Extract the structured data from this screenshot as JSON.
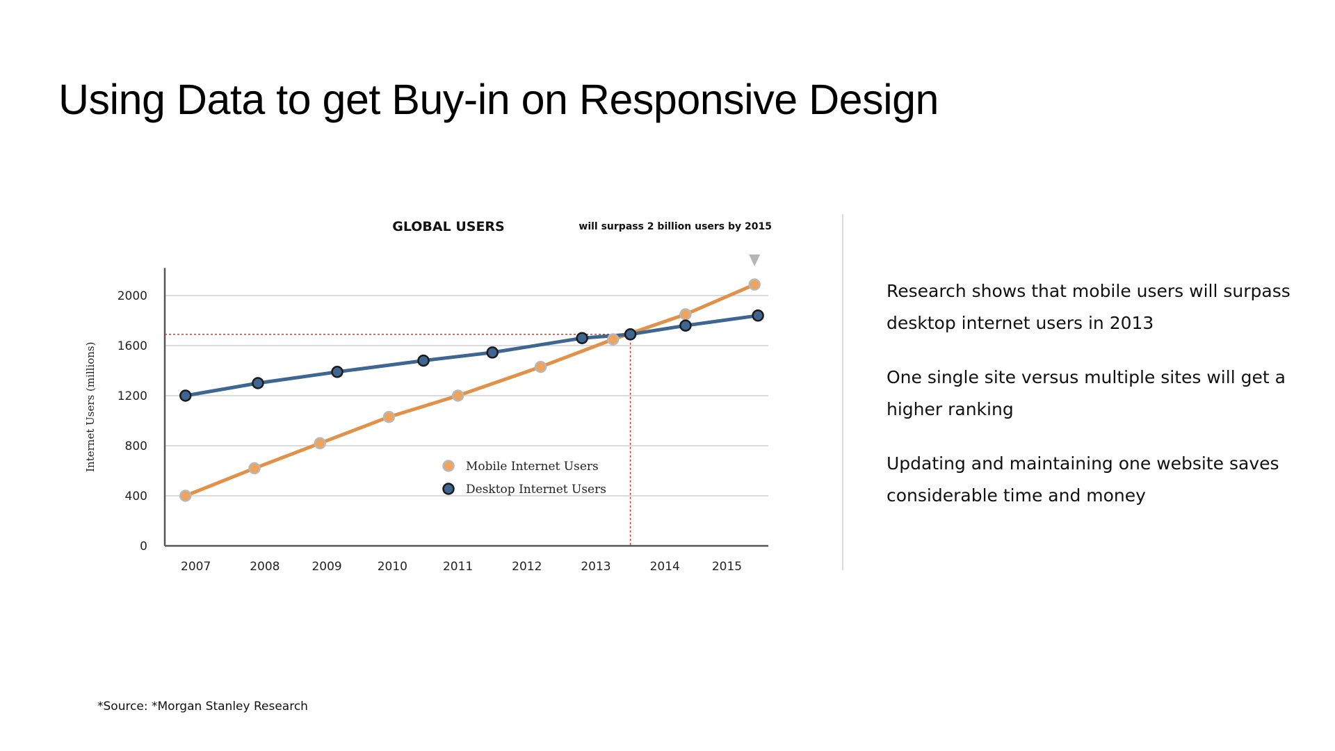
{
  "slide": {
    "title": "Using Data to get Buy-in on Responsive Design"
  },
  "bullets": [
    "Research shows that mobile users will surpass desktop internet users in 2013",
    "One single site versus multiple sites will get a higher ranking",
    "Updating and maintaining one website saves considerable time and money"
  ],
  "footer": {
    "source": "*Source: *Morgan Stanley Research"
  },
  "colors": {
    "mobile": "#e0924a",
    "desktop": "#3f6591",
    "marker_outline": "#1b1b1b",
    "mobile_marker_fill": "#f0a35b",
    "mobile_marker_ring": "#b8b8b8",
    "crossover_guide": "#d8312a",
    "grid": "#cfcfcf",
    "axis": "#555555",
    "arrow": "#b5b5b5"
  },
  "chart_data": {
    "type": "line",
    "title": "GLOBAL USERS",
    "subtitle": "will surpass 2 billion users by 2015",
    "xlabel": "",
    "ylabel": "Internet Users (millions)",
    "x_ticks": [
      "2007",
      "2008",
      "2009",
      "2010",
      "2011",
      "2012",
      "2013",
      "2014",
      "2015"
    ],
    "xlim": [
      2006.7,
      2015.45
    ],
    "y_ticks": [
      {
        "value": 0,
        "label": "0"
      },
      {
        "value": 400,
        "label": "400"
      },
      {
        "value": 800,
        "label": "800"
      },
      {
        "value": 1200,
        "label": "1200"
      },
      {
        "value": 1600,
        "label": "1600"
      },
      {
        "value": 2000,
        "label": "2000"
      }
    ],
    "y_scale": [
      {
        "value": 0,
        "pos": 0
      },
      {
        "value": 400,
        "pos": 1
      },
      {
        "value": 800,
        "pos": 2
      },
      {
        "value": 1200,
        "pos": 3
      },
      {
        "value": 1600,
        "pos": 4
      },
      {
        "value": 2000,
        "pos": 5
      },
      {
        "value": 2200,
        "pos": 5.55
      }
    ],
    "grid": true,
    "legend": "center",
    "series": [
      {
        "name": "Mobile Internet Users",
        "key": "mobile",
        "points": [
          {
            "x": 2007.0,
            "y": 400
          },
          {
            "x": 2008.0,
            "y": 620
          },
          {
            "x": 2008.95,
            "y": 820
          },
          {
            "x": 2009.95,
            "y": 1030
          },
          {
            "x": 2010.95,
            "y": 1200
          },
          {
            "x": 2012.15,
            "y": 1430
          },
          {
            "x": 2013.2,
            "y": 1650
          },
          {
            "x": 2014.25,
            "y": 1850
          },
          {
            "x": 2015.25,
            "y": 2080
          }
        ]
      },
      {
        "name": "Desktop Internet Users",
        "key": "desktop",
        "points": [
          {
            "x": 2007.0,
            "y": 1200
          },
          {
            "x": 2008.05,
            "y": 1300
          },
          {
            "x": 2009.2,
            "y": 1390
          },
          {
            "x": 2010.45,
            "y": 1480
          },
          {
            "x": 2011.45,
            "y": 1545
          },
          {
            "x": 2012.75,
            "y": 1660
          },
          {
            "x": 2013.45,
            "y": 1690
          },
          {
            "x": 2014.25,
            "y": 1760
          },
          {
            "x": 2015.3,
            "y": 1840
          }
        ]
      }
    ],
    "crossover": {
      "x": 2013.45,
      "y": 1690
    },
    "annotations": [
      {
        "text": "will surpass 2 billion users by 2015",
        "target_x": 2015.25
      }
    ]
  }
}
